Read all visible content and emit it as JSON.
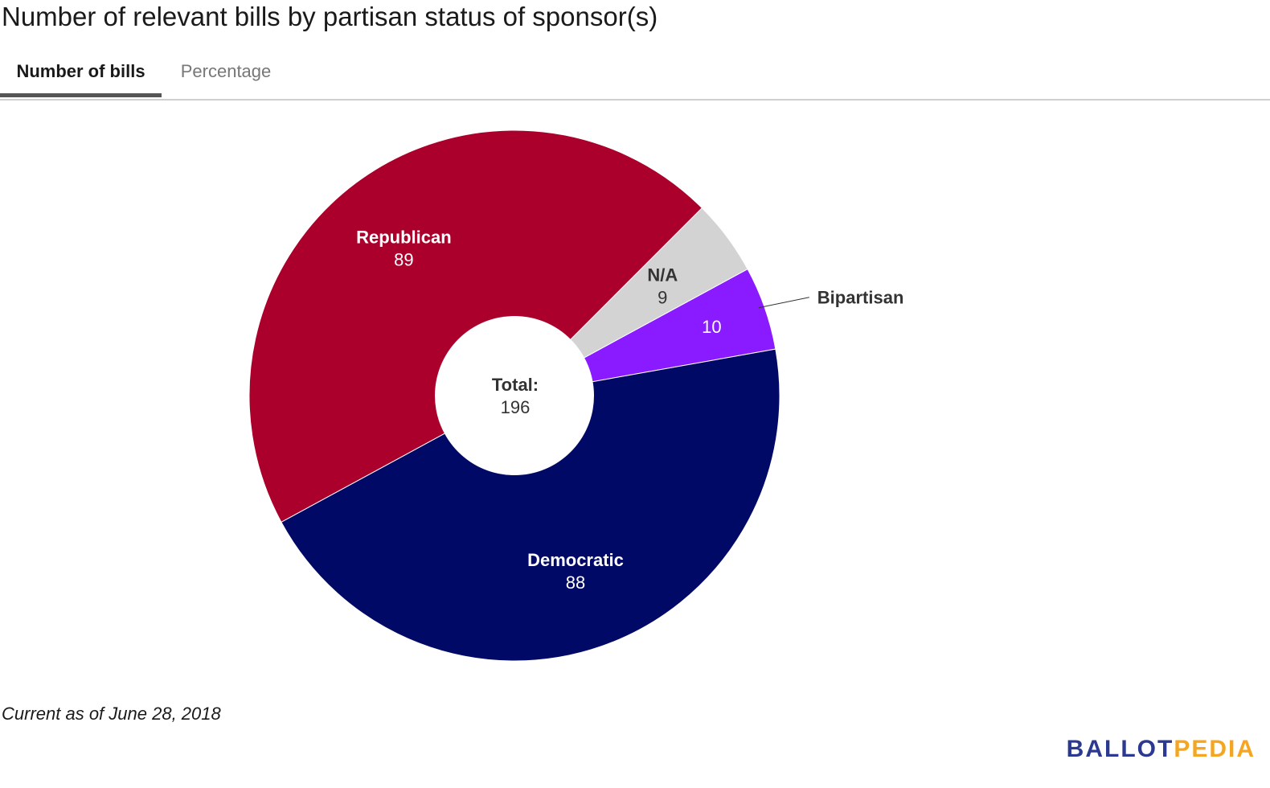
{
  "title": "Number of relevant bills by partisan status of sponsor(s)",
  "tabs": [
    {
      "label": "Number of bills",
      "active": true
    },
    {
      "label": "Percentage",
      "active": false
    }
  ],
  "footnote": "Current as of June 28, 2018",
  "logo": {
    "part1": "BALLOT",
    "part2": "PEDIA"
  },
  "chart_data": {
    "type": "pie",
    "donut": true,
    "center_label": "Total:",
    "center_value": "196",
    "slices": [
      {
        "label": "N/A",
        "value": 9,
        "color": "#d3d3d3",
        "label_color": "#333333",
        "external_label": false
      },
      {
        "label": "Bipartisan",
        "value": 10,
        "color": "#8a1aff",
        "label_color": "#ffffff",
        "external_label": true
      },
      {
        "label": "Democratic",
        "value": 88,
        "color": "#000a66",
        "label_color": "#ffffff",
        "external_label": false
      },
      {
        "label": "Republican",
        "value": 89,
        "color": "#ab002b",
        "label_color": "#ffffff",
        "external_label": false
      }
    ]
  }
}
